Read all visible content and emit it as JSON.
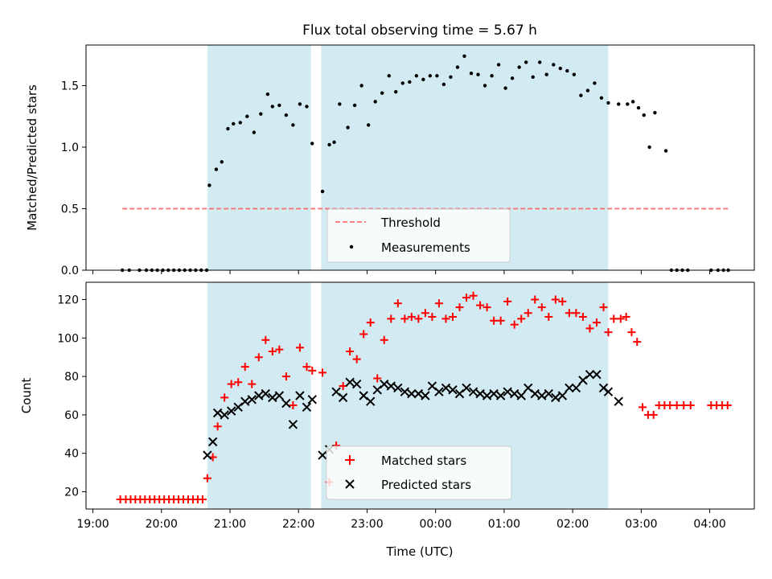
{
  "title": "Flux total observing time = 5.67 h",
  "xlabel": "Time (UTC)",
  "colors": {
    "shade": "#add8e6",
    "threshold": "#ff5555",
    "measurements": "#000000",
    "matched": "#ff0000",
    "predicted": "#000000"
  },
  "chart_data": [
    {
      "type": "scatter",
      "ylabel": "Matched/Predicted stars",
      "ylim": [
        0,
        1.83
      ],
      "yticks": [
        0.0,
        0.5,
        1.0,
        1.5
      ],
      "ytick_labels": [
        "0.0",
        "0.5",
        "1.0",
        "1.5"
      ],
      "x_axis": "hours since 19:00 UTC",
      "xlim": [
        -0.1,
        9.65
      ],
      "shaded_intervals": [
        [
          1.67,
          3.18
        ],
        [
          3.33,
          7.52
        ]
      ],
      "threshold": {
        "name": "Threshold",
        "value": 0.5,
        "x_range": [
          0.43,
          9.27
        ],
        "style": "dashed"
      },
      "legend": {
        "placement": "lower-center",
        "entries": [
          "Threshold",
          "Measurements"
        ]
      },
      "series": [
        {
          "name": "Measurements",
          "x": [
            0.43,
            0.53,
            0.68,
            0.78,
            0.86,
            0.94,
            1.02,
            1.1,
            1.18,
            1.26,
            1.34,
            1.42,
            1.5,
            1.58,
            1.66,
            1.7,
            1.8,
            1.88,
            1.97,
            2.05,
            2.15,
            2.25,
            2.35,
            2.45,
            2.55,
            2.62,
            2.72,
            2.82,
            2.92,
            3.02,
            3.12,
            3.2,
            3.35,
            3.45,
            3.52,
            3.6,
            3.72,
            3.82,
            3.92,
            4.02,
            4.12,
            4.22,
            4.32,
            4.42,
            4.52,
            4.62,
            4.72,
            4.82,
            4.92,
            5.02,
            5.12,
            5.22,
            5.32,
            5.42,
            5.52,
            5.62,
            5.72,
            5.82,
            5.92,
            6.02,
            6.12,
            6.22,
            6.32,
            6.42,
            6.52,
            6.62,
            6.72,
            6.82,
            6.92,
            7.02,
            7.12,
            7.22,
            7.32,
            7.42,
            7.52,
            7.67,
            7.8,
            7.88,
            7.96,
            8.04,
            8.12,
            8.2,
            8.36,
            8.44,
            8.52,
            8.6,
            8.68,
            9.02,
            9.12,
            9.2,
            9.27
          ],
          "y": [
            0,
            0,
            0,
            0,
            0,
            0,
            0,
            0,
            0,
            0,
            0,
            0,
            0,
            0,
            0,
            0.69,
            0.82,
            0.88,
            1.15,
            1.19,
            1.2,
            1.25,
            1.12,
            1.27,
            1.43,
            1.33,
            1.34,
            1.26,
            1.18,
            1.35,
            1.33,
            1.03,
            0.64,
            1.02,
            1.04,
            1.35,
            1.16,
            1.34,
            1.5,
            1.18,
            1.37,
            1.44,
            1.58,
            1.45,
            1.52,
            1.53,
            1.58,
            1.55,
            1.58,
            1.58,
            1.51,
            1.57,
            1.65,
            1.74,
            1.6,
            1.59,
            1.5,
            1.58,
            1.67,
            1.48,
            1.56,
            1.65,
            1.69,
            1.57,
            1.69,
            1.59,
            1.67,
            1.64,
            1.62,
            1.59,
            1.42,
            1.46,
            1.52,
            1.4,
            1.36,
            1.35,
            1.35,
            1.37,
            1.32,
            1.26,
            1.0,
            1.28,
            0.97,
            0,
            0,
            0,
            0,
            0,
            0,
            0,
            0
          ]
        }
      ]
    },
    {
      "type": "scatter",
      "ylabel": "Count",
      "ylim": [
        11,
        129
      ],
      "yticks": [
        20,
        40,
        60,
        80,
        100,
        120
      ],
      "ytick_labels": [
        "20",
        "40",
        "60",
        "80",
        "100",
        "120"
      ],
      "x_axis": "hours since 19:00 UTC",
      "xlim": [
        -0.1,
        9.65
      ],
      "xticks": [
        0,
        1,
        2,
        3,
        4,
        5,
        6,
        7,
        8,
        9
      ],
      "xtick_labels": [
        "19:00",
        "20:00",
        "21:00",
        "22:00",
        "23:00",
        "00:00",
        "01:00",
        "02:00",
        "03:00",
        "04:00"
      ],
      "shaded_intervals": [
        [
          1.67,
          3.18
        ],
        [
          3.33,
          7.52
        ]
      ],
      "legend": {
        "placement": "lower-center",
        "entries": [
          "Matched stars",
          "Predicted stars"
        ]
      },
      "series": [
        {
          "name": "Matched stars",
          "marker": "plus",
          "x": [
            0.4,
            0.48,
            0.55,
            0.62,
            0.69,
            0.76,
            0.83,
            0.9,
            0.97,
            1.04,
            1.11,
            1.18,
            1.25,
            1.32,
            1.39,
            1.46,
            1.53,
            1.6,
            1.67,
            1.75,
            1.82,
            1.92,
            2.02,
            2.12,
            2.22,
            2.32,
            2.42,
            2.52,
            2.62,
            2.72,
            2.82,
            2.92,
            3.02,
            3.12,
            3.2,
            3.35,
            3.45,
            3.55,
            3.65,
            3.75,
            3.85,
            3.95,
            4.05,
            4.15,
            4.25,
            4.35,
            4.45,
            4.55,
            4.65,
            4.75,
            4.85,
            4.95,
            5.05,
            5.15,
            5.25,
            5.35,
            5.45,
            5.55,
            5.65,
            5.75,
            5.85,
            5.95,
            6.05,
            6.15,
            6.25,
            6.35,
            6.45,
            6.55,
            6.65,
            6.75,
            6.85,
            6.95,
            7.05,
            7.15,
            7.25,
            7.35,
            7.45,
            7.52,
            7.6,
            7.7,
            7.78,
            7.86,
            7.94,
            8.02,
            8.1,
            8.18,
            8.26,
            8.34,
            8.42,
            8.52,
            8.62,
            8.72,
            9.02,
            9.1,
            9.18,
            9.26
          ],
          "y": [
            16,
            16,
            16,
            16,
            16,
            16,
            16,
            16,
            16,
            16,
            16,
            16,
            16,
            16,
            16,
            16,
            16,
            16,
            27,
            38,
            54,
            69,
            76,
            77,
            85,
            76,
            90,
            99,
            93,
            94,
            80,
            65,
            95,
            85,
            83,
            82,
            25,
            44,
            75,
            93,
            89,
            102,
            108,
            79,
            99,
            110,
            118,
            110,
            111,
            110,
            113,
            111,
            118,
            110,
            111,
            116,
            121,
            122,
            117,
            116,
            109,
            109,
            119,
            107,
            110,
            113,
            120,
            116,
            111,
            120,
            119,
            113,
            113,
            111,
            105,
            108,
            116,
            103,
            110,
            110,
            111,
            103,
            98,
            64,
            60,
            60,
            65,
            65,
            65,
            65,
            65,
            65,
            65,
            65,
            65,
            65
          ]
        },
        {
          "name": "Predicted stars",
          "marker": "x",
          "x": [
            1.67,
            1.75,
            1.82,
            1.92,
            2.02,
            2.12,
            2.22,
            2.32,
            2.42,
            2.52,
            2.62,
            2.72,
            2.82,
            2.92,
            3.02,
            3.12,
            3.2,
            3.35,
            3.45,
            3.55,
            3.65,
            3.75,
            3.85,
            3.95,
            4.05,
            4.15,
            4.25,
            4.35,
            4.45,
            4.55,
            4.65,
            4.75,
            4.85,
            4.95,
            5.05,
            5.15,
            5.25,
            5.35,
            5.45,
            5.55,
            5.65,
            5.75,
            5.85,
            5.95,
            6.05,
            6.15,
            6.25,
            6.35,
            6.45,
            6.55,
            6.65,
            6.75,
            6.85,
            6.95,
            7.05,
            7.15,
            7.25,
            7.35,
            7.45,
            7.52,
            7.67
          ],
          "y": [
            39,
            46,
            61,
            60,
            62,
            64,
            67,
            68,
            70,
            71,
            69,
            70,
            66,
            55,
            70,
            64,
            68,
            39,
            42,
            72,
            69,
            77,
            76,
            70,
            67,
            73,
            76,
            75,
            74,
            72,
            71,
            71,
            70,
            75,
            72,
            74,
            73,
            71,
            74,
            72,
            71,
            70,
            71,
            70,
            72,
            71,
            70,
            74,
            71,
            70,
            71,
            69,
            70,
            74,
            74,
            78,
            81,
            81,
            74,
            72,
            67
          ]
        }
      ]
    }
  ]
}
